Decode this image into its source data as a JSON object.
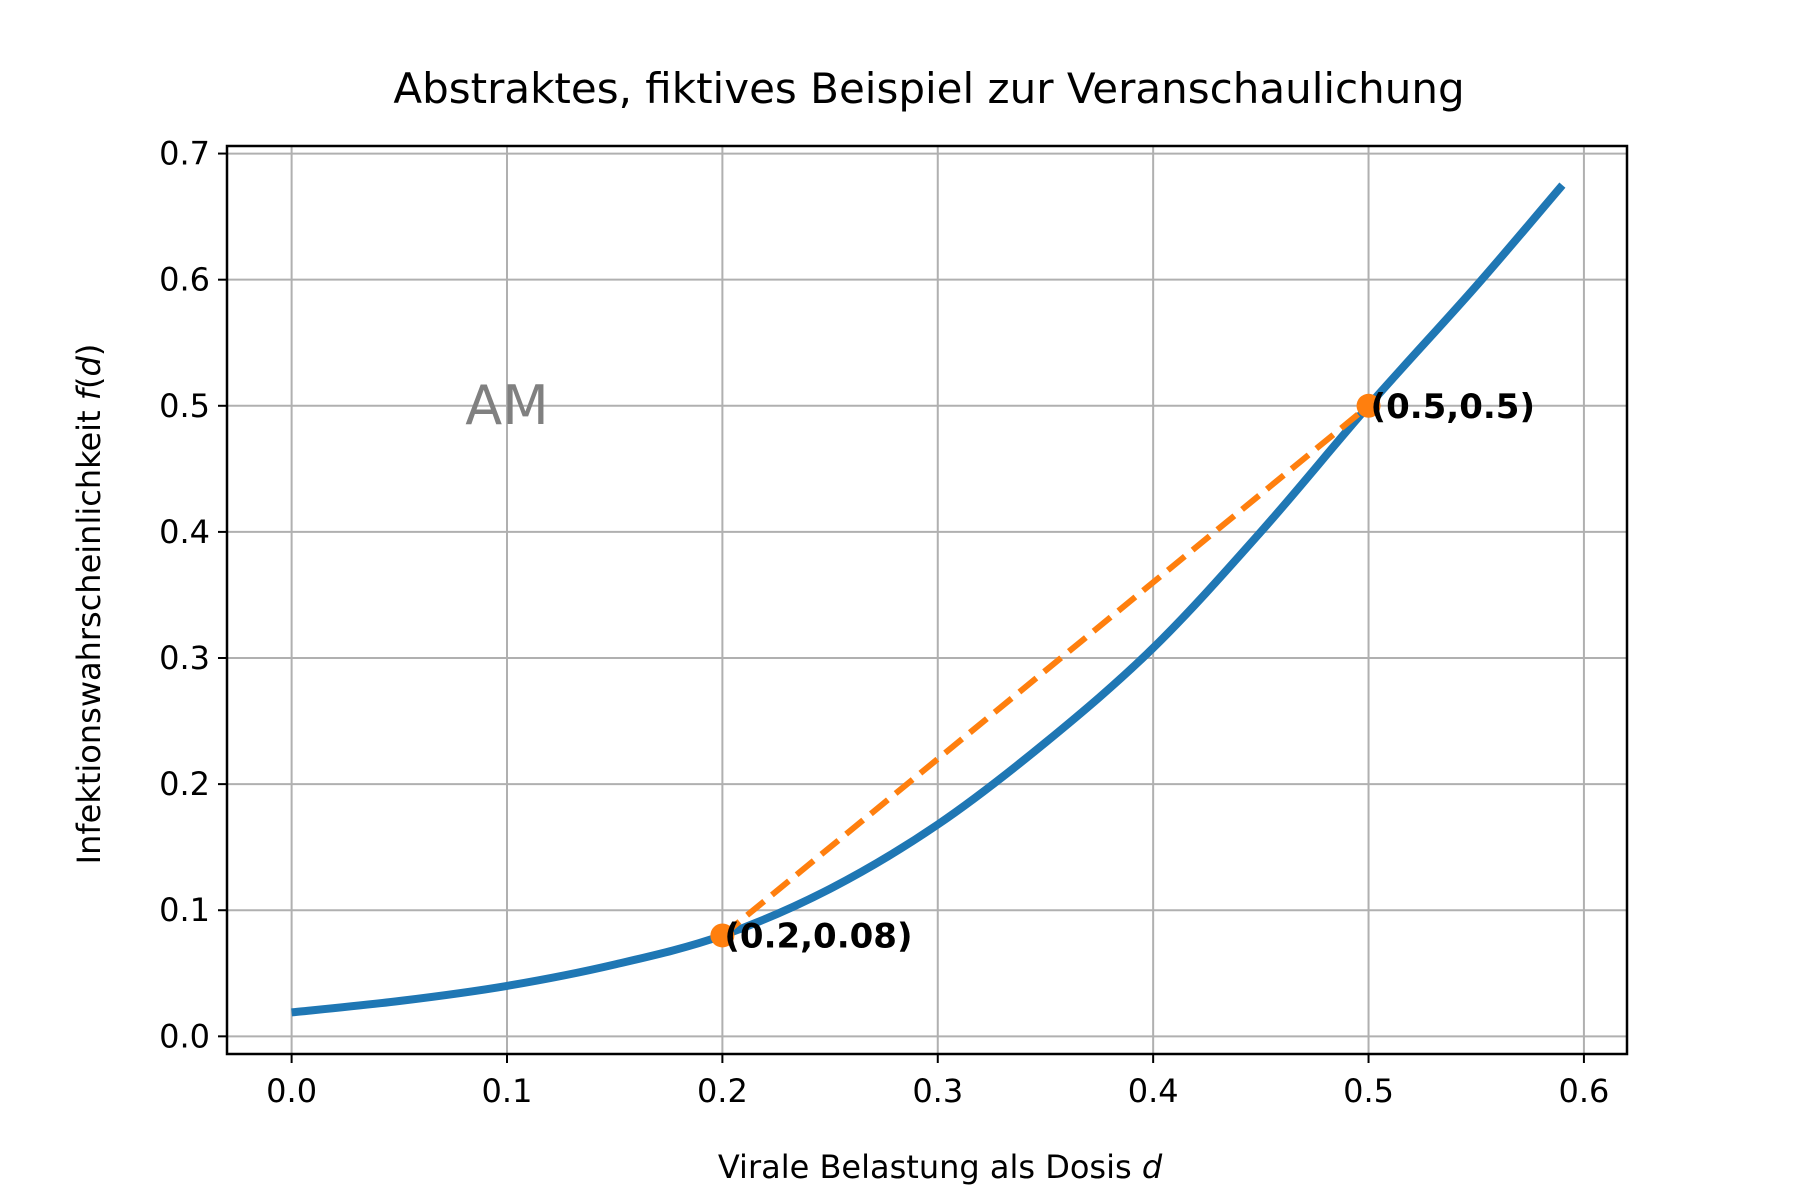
{
  "chart_data": {
    "type": "line",
    "title": "Abstraktes, fiktives Beispiel zur Veranschaulichung",
    "xlabel_text": "Virale Belastung als Dosis ",
    "xlabel_var": "d",
    "ylabel_text": "Infektionswahrscheinlichkeit ",
    "ylabel_fn": "f",
    "ylabel_open": "(",
    "ylabel_var": "d",
    "ylabel_close": ")",
    "xlim": [
      -0.03,
      0.62
    ],
    "ylim": [
      -0.014,
      0.706
    ],
    "xticks": [
      0.0,
      0.1,
      0.2,
      0.3,
      0.4,
      0.5,
      0.6
    ],
    "xtick_labels": [
      "0.0",
      "0.1",
      "0.2",
      "0.3",
      "0.4",
      "0.5",
      "0.6"
    ],
    "yticks": [
      0.0,
      0.1,
      0.2,
      0.3,
      0.4,
      0.5,
      0.6,
      0.7
    ],
    "ytick_labels": [
      "0.0",
      "0.1",
      "0.2",
      "0.3",
      "0.4",
      "0.5",
      "0.6",
      "0.7"
    ],
    "grid": true,
    "series": [
      {
        "color": "#1f77b4",
        "style": "solid",
        "x": [
          0.0,
          0.05,
          0.1,
          0.15,
          0.2,
          0.25,
          0.3,
          0.35,
          0.4,
          0.45,
          0.5,
          0.55,
          0.59
        ],
        "y": [
          0.019,
          0.028,
          0.04,
          0.057,
          0.08,
          0.117,
          0.168,
          0.233,
          0.308,
          0.4,
          0.5,
          0.595,
          0.675
        ]
      },
      {
        "color": "#ff7f0e",
        "style": "dashed",
        "x": [
          0.2,
          0.5
        ],
        "y": [
          0.08,
          0.5
        ]
      }
    ],
    "points": [
      {
        "x": 0.2,
        "y": 0.08,
        "label": "(0.2,0.08)",
        "color": "#ff7f0e"
      },
      {
        "x": 0.5,
        "y": 0.5,
        "label": "(0.5,0.5)",
        "color": "#ff7f0e"
      }
    ],
    "annotation": {
      "text": "AM",
      "x": 0.1,
      "y": 0.5,
      "color": "#808080"
    }
  }
}
